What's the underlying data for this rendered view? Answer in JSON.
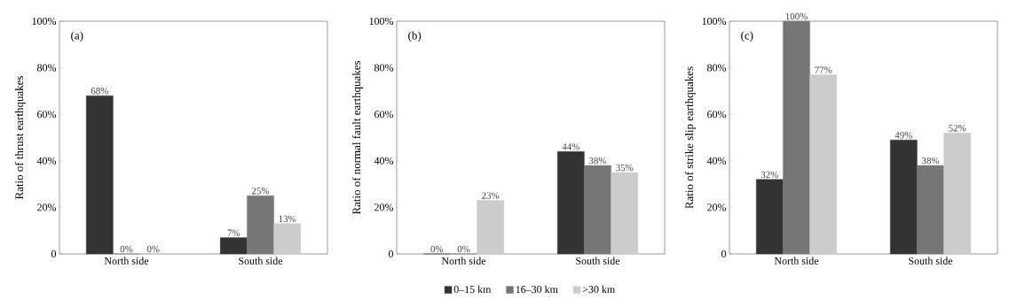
{
  "chart_data": [
    {
      "type": "bar",
      "ylabel": "Ratio of thrust earthquakes",
      "annotations": [
        "(a)"
      ],
      "categories": [
        "North side",
        "South side"
      ],
      "ylim": [
        0,
        100
      ],
      "yticks": [
        0,
        {
          "value": 20,
          "label": "20%"
        },
        {
          "value": 40,
          "label": "40%"
        },
        {
          "value": 60,
          "label": "60%"
        },
        {
          "value": 80,
          "label": "80%"
        },
        {
          "value": 100,
          "label": "100%"
        }
      ],
      "legend": false,
      "series": [
        {
          "color": "#333333",
          "values": [
            68,
            7
          ],
          "value_labels": [
            "68%",
            "7%"
          ]
        },
        {
          "color": "#767676",
          "values": [
            0,
            25
          ],
          "value_labels": [
            "0%",
            "25%"
          ]
        },
        {
          "color": "#cccccc",
          "values": [
            0,
            13
          ],
          "value_labels": [
            "0%",
            "13%"
          ]
        }
      ]
    },
    {
      "type": "bar",
      "ylabel": "Ratio of normal fault earthquakes",
      "annotations": [
        "(b)"
      ],
      "categories": [
        "North side",
        "South side"
      ],
      "ylim": [
        0,
        100
      ],
      "yticks": [
        0,
        {
          "value": 20,
          "label": "20%"
        },
        {
          "value": 40,
          "label": "40%"
        },
        {
          "value": 60,
          "label": "60%"
        },
        {
          "value": 80,
          "label": "80%"
        },
        {
          "value": 100,
          "label": "100%"
        }
      ],
      "legend": "bottom",
      "series": [
        {
          "name": "0–15 km",
          "color": "#333333",
          "values": [
            0,
            44
          ],
          "value_labels": [
            "0%",
            "44%"
          ]
        },
        {
          "name": "16–30 km",
          "color": "#767676",
          "values": [
            0,
            38
          ],
          "value_labels": [
            "0%",
            "38%"
          ]
        },
        {
          "name": ">30 km",
          "color": "#cccccc",
          "values": [
            23,
            35
          ],
          "value_labels": [
            "23%",
            "35%"
          ]
        }
      ]
    },
    {
      "type": "bar",
      "ylabel": "Ratio of strike slip earthquakes",
      "annotations": [
        "(c)"
      ],
      "categories": [
        "North side",
        "South side"
      ],
      "ylim": [
        0,
        100
      ],
      "yticks": [
        0,
        {
          "value": 20,
          "label": "20%"
        },
        {
          "value": 40,
          "label": "40%"
        },
        {
          "value": 60,
          "label": "60%"
        },
        {
          "value": 80,
          "label": "80%"
        },
        {
          "value": 100,
          "label": "100%"
        }
      ],
      "legend": false,
      "series": [
        {
          "color": "#333333",
          "values": [
            32,
            49
          ],
          "value_labels": [
            "32%",
            "49%"
          ]
        },
        {
          "color": "#767676",
          "values": [
            100,
            38
          ],
          "value_labels": [
            "100%",
            "38%"
          ]
        },
        {
          "color": "#cccccc",
          "values": [
            77,
            52
          ],
          "value_labels": [
            "77%",
            "52%"
          ]
        }
      ]
    }
  ]
}
